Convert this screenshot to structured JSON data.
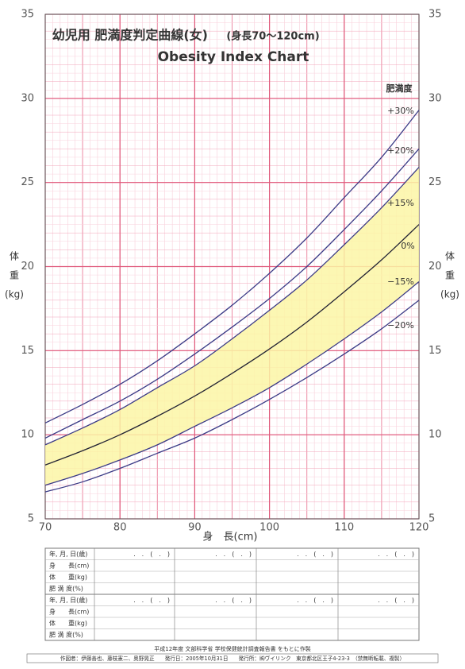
{
  "chart_data": {
    "type": "line",
    "title": "幼児用  肥満度判定曲線(女)",
    "title_range": "(身長70〜120cm)",
    "subtitle": "Obesity Index Chart",
    "legend_title": "肥満度",
    "x_label": "身　長(cm)",
    "y_label_left": [
      "体",
      "重",
      "(kg)"
    ],
    "y_label_right": [
      "体",
      "重",
      "(kg)"
    ],
    "x": [
      70,
      75,
      80,
      85,
      90,
      95,
      100,
      105,
      110,
      115,
      120
    ],
    "series": [
      {
        "name": "+30%",
        "color": "#3b3b86",
        "values": [
          10.7,
          11.8,
          13.0,
          14.4,
          16.0,
          17.7,
          19.6,
          21.7,
          24.1,
          26.5,
          29.3
        ]
      },
      {
        "name": "+20%",
        "color": "#3b3b86",
        "values": [
          9.8,
          10.9,
          12.0,
          13.3,
          14.8,
          16.4,
          18.1,
          20.0,
          22.2,
          24.5,
          27.0
        ]
      },
      {
        "name": "+15%",
        "color": "#3b3b86",
        "values": [
          9.4,
          10.4,
          11.5,
          12.8,
          14.1,
          15.7,
          17.4,
          19.2,
          21.3,
          23.5,
          25.9
        ]
      },
      {
        "name": "0%",
        "color": "#222233",
        "values": [
          8.2,
          9.05,
          10.0,
          11.1,
          12.3,
          13.65,
          15.1,
          16.7,
          18.5,
          20.4,
          22.5
        ]
      },
      {
        "name": "−15%",
        "color": "#3b3b86",
        "values": [
          7.0,
          7.7,
          8.5,
          9.4,
          10.5,
          11.6,
          12.8,
          14.2,
          15.7,
          17.3,
          19.1
        ]
      },
      {
        "name": "−20%",
        "color": "#3b3b86",
        "values": [
          6.6,
          7.2,
          8.0,
          8.9,
          9.8,
          10.9,
          12.1,
          13.4,
          14.8,
          16.3,
          18.0
        ]
      }
    ],
    "band_color": "#fbf6a6",
    "xlim": [
      70,
      120
    ],
    "xticks": [
      70,
      80,
      90,
      100,
      110,
      120
    ],
    "ylim": [
      5,
      35
    ],
    "yticks": [
      5,
      10,
      15,
      20,
      25,
      30,
      35
    ],
    "grid": true
  },
  "table": {
    "rows": [
      [
        "年, 月, 日(歳)",
        ".　.　(　.　)",
        ".　.　(　.　)",
        ".　.　(　.　)",
        ".　.　(　.　)"
      ],
      [
        "身　　長(cm)"
      ],
      [
        "体　　重(kg)"
      ],
      [
        "肥 満 度(%)"
      ],
      [
        "年, 月, 日(歳)",
        ".　.　(　.　)",
        ".　.　(　.　)",
        ".　.　(　.　)",
        ".　.　(　.　)"
      ],
      [
        "身　　長(cm)"
      ],
      [
        "体　　重(kg)"
      ],
      [
        "肥 満 度(%)"
      ]
    ]
  },
  "footer": {
    "source": "平成12年度 文部科学省 学校保健統計調査報告書 をもとに作製",
    "credits": "作図者：伊藤善也、藤枝憲二、奥野晃正　　発行日：2005年10月31日　　発行所：㈱ヴイリンク　東京都北区王子4-23-3　（禁無断転載、複製）"
  }
}
